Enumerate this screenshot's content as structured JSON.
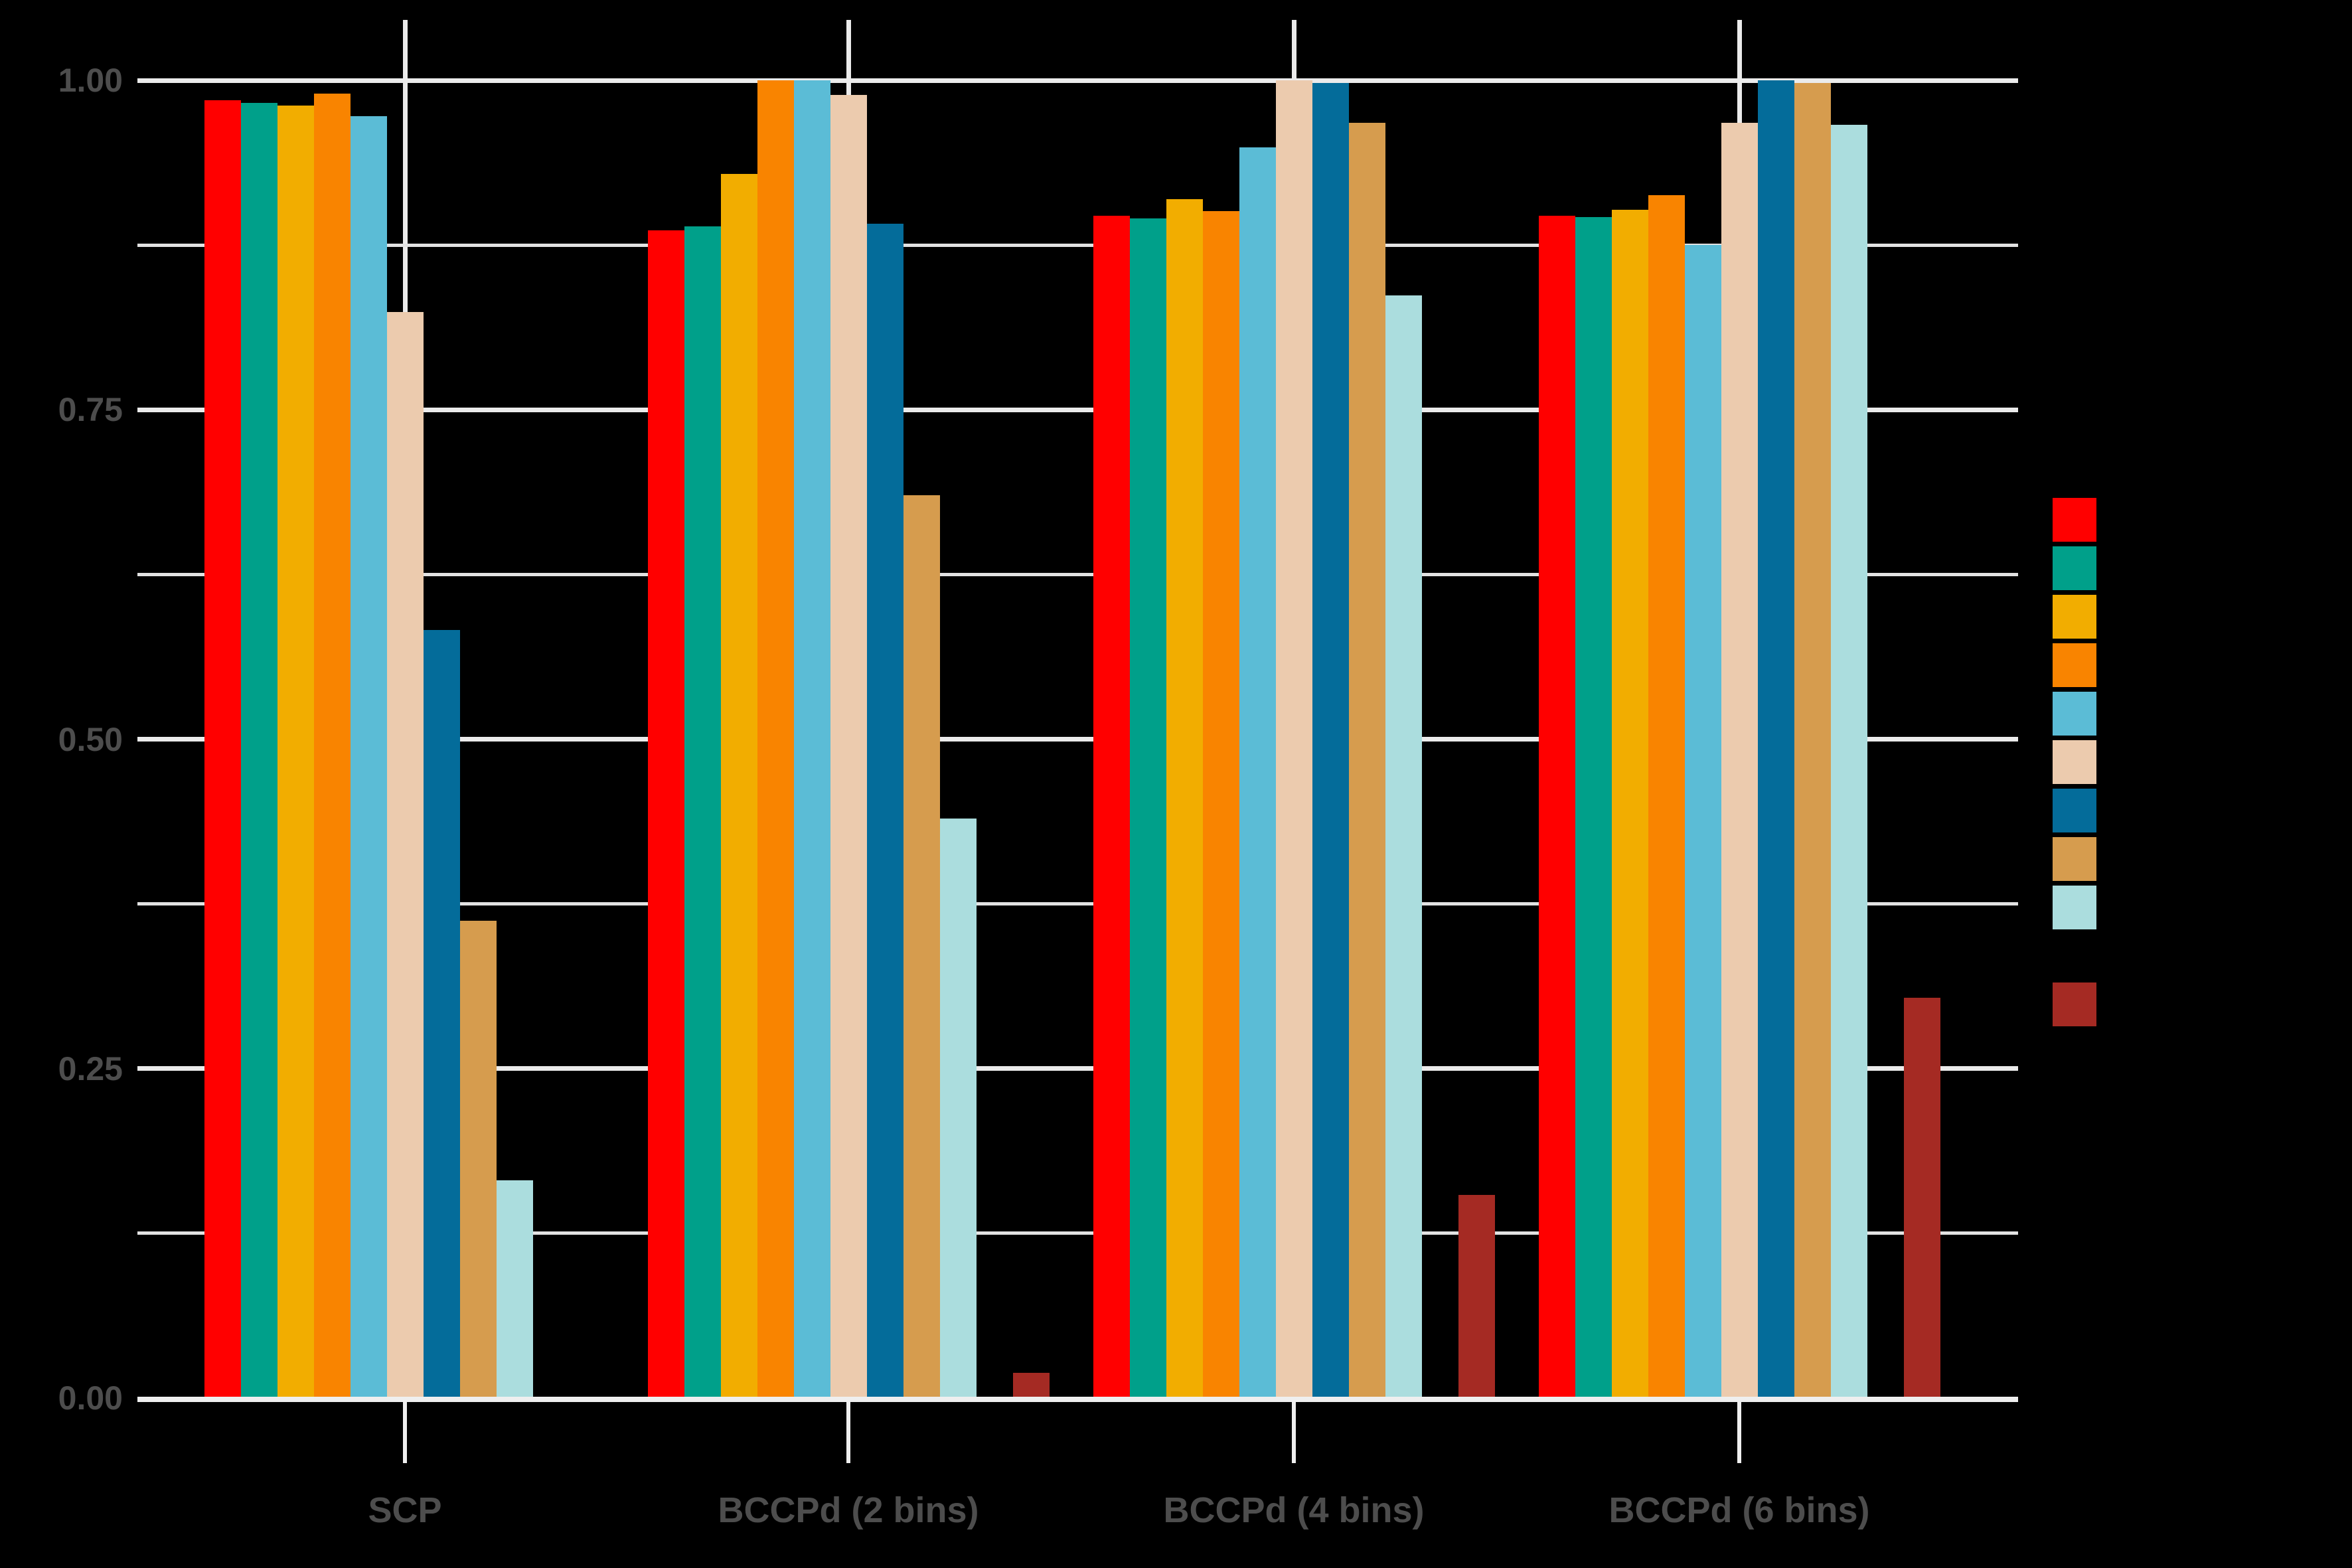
{
  "chart_data": {
    "type": "bar",
    "subtype": "grouped-dodged",
    "title": "",
    "xlabel": "",
    "ylabel": "",
    "background_color": "#000000",
    "axis_text_color": "#4D4D4D",
    "gridline_major_color": "#EBEBEB",
    "gridline_minor_color": "#E2E2E2",
    "axis_line_color": "#EFEFEF",
    "categories": [
      "SCP",
      "BCCPd (2 bins)",
      "BCCPd (4 bins)",
      "BCCPd (6 bins)"
    ],
    "series": [
      {
        "name": "series-red",
        "color": "#FF0000",
        "values": [
          0.985,
          0.886,
          0.897,
          0.897
        ]
      },
      {
        "name": "series-teal",
        "color": "#00A08A",
        "values": [
          0.983,
          0.889,
          0.895,
          0.896
        ]
      },
      {
        "name": "series-amber",
        "color": "#F2AD00",
        "values": [
          0.981,
          0.929,
          0.91,
          0.902
        ]
      },
      {
        "name": "series-orange",
        "color": "#F98400",
        "values": [
          0.99,
          1.0,
          0.901,
          0.913
        ]
      },
      {
        "name": "series-lightblue",
        "color": "#5BBCD6",
        "values": [
          0.973,
          1.0,
          0.949,
          0.875
        ]
      },
      {
        "name": "series-cream",
        "color": "#ECCBAE",
        "values": [
          0.824,
          0.989,
          1.0,
          0.968
        ]
      },
      {
        "name": "series-darkblue",
        "color": "#046C9A",
        "values": [
          0.583,
          0.891,
          0.998,
          1.0
        ]
      },
      {
        "name": "series-tan",
        "color": "#D69C4E",
        "values": [
          0.362,
          0.685,
          0.968,
          0.998
        ]
      },
      {
        "name": "series-palecyan",
        "color": "#ABDDDE",
        "values": [
          0.165,
          0.44,
          0.837,
          0.966
        ]
      },
      {
        "name": "series-black-invisible",
        "color": "#000000",
        "values": [
          0.0,
          0.0,
          0.0,
          0.0
        ]
      },
      {
        "name": "series-darkred",
        "color": "#A52A23",
        "values": [
          0.0,
          0.019,
          0.154,
          0.304
        ]
      }
    ],
    "y_axis": {
      "min": 0.0,
      "max": 1.0,
      "major_tick_values": [
        0.0,
        0.25,
        0.5,
        0.75,
        1.0
      ],
      "major_tick_labels": [
        "0.00",
        "0.25",
        "0.50",
        "0.75",
        "1.00"
      ],
      "minor_gridline_values": [
        0.125,
        0.375,
        0.625,
        0.875
      ],
      "grid": true
    },
    "x_axis": {
      "tick_labels": [
        "SCP",
        "BCCPd (2 bins)",
        "BCCPd (4 bins)",
        "BCCPd (6 bins)"
      ],
      "vertical_gridlines_at_group_centers": true
    },
    "legend": {
      "position": "right",
      "labels_visible": false,
      "swatch_order": [
        "#FF0000",
        "#00A08A",
        "#F2AD00",
        "#F98400",
        "#5BBCD6",
        "#ECCBAE",
        "#046C9A",
        "#D69C4E",
        "#ABDDDE",
        "#000000",
        "#A52A23"
      ]
    }
  }
}
